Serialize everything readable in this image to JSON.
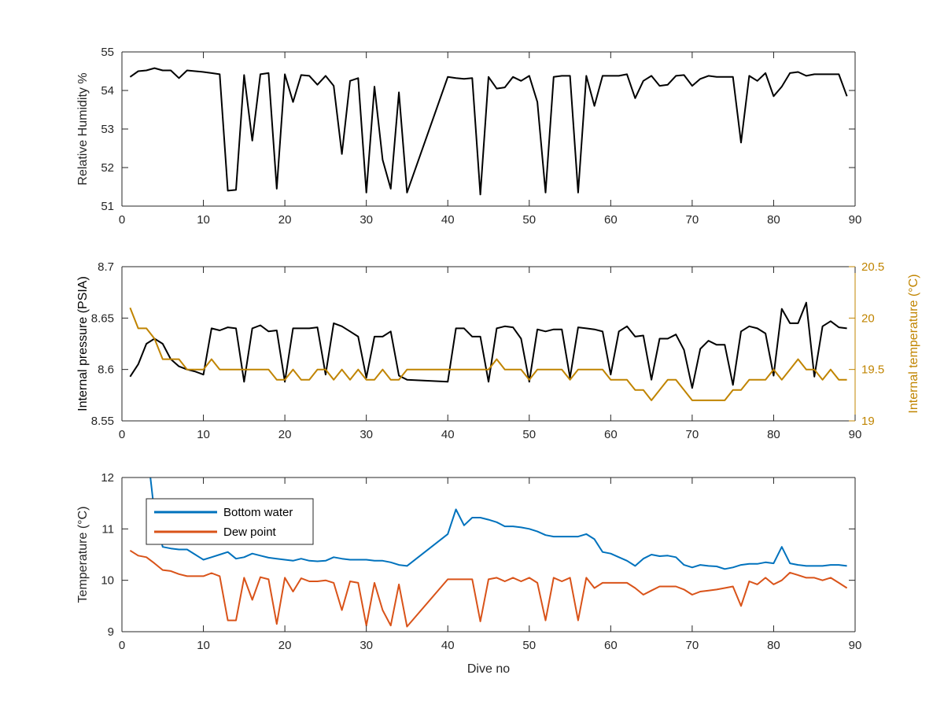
{
  "colors": {
    "black": "#000000",
    "axis": "#262626",
    "pressure_right": "#C08400",
    "bottom_water": "#0072BD",
    "dew_point": "#D95319"
  },
  "chart_data": [
    {
      "type": "line",
      "xlabel": "",
      "ylabel": "Relative Humidity %",
      "xlim": [
        0,
        90
      ],
      "ylim": [
        51,
        55
      ],
      "xticks": [
        "0",
        "10",
        "20",
        "30",
        "40",
        "50",
        "60",
        "70",
        "80",
        "90"
      ],
      "yticks": [
        "51",
        "52",
        "53",
        "54",
        "55"
      ],
      "grid": false,
      "series": [
        {
          "color": "#000000",
          "x": [
            1,
            2,
            3,
            4,
            5,
            6,
            7,
            8,
            9,
            10,
            11,
            12,
            13,
            14,
            15,
            16,
            17,
            18,
            19,
            20,
            21,
            22,
            23,
            24,
            25,
            26,
            27,
            28,
            29,
            30,
            31,
            32,
            33,
            34,
            35,
            40,
            41,
            42,
            43,
            44,
            45,
            46,
            47,
            48,
            49,
            50,
            51,
            52,
            53,
            54,
            55,
            56,
            57,
            58,
            59,
            60,
            61,
            62,
            63,
            64,
            65,
            66,
            67,
            68,
            69,
            70,
            71,
            72,
            73,
            74,
            75,
            76,
            77,
            78,
            79,
            80,
            81,
            82,
            83,
            84,
            85,
            86,
            87,
            88,
            89
          ],
          "y": [
            54.35,
            54.5,
            54.52,
            54.58,
            54.52,
            54.52,
            54.32,
            54.52,
            54.5,
            54.48,
            54.45,
            54.42,
            51.4,
            51.42,
            54.4,
            52.7,
            54.42,
            54.45,
            51.45,
            54.42,
            53.7,
            54.4,
            54.38,
            54.15,
            54.38,
            54.12,
            52.35,
            54.25,
            54.32,
            51.35,
            54.1,
            52.2,
            51.45,
            53.95,
            51.35,
            54.35,
            54.32,
            54.3,
            54.32,
            51.3,
            54.35,
            54.05,
            54.08,
            54.35,
            54.25,
            54.38,
            53.7,
            51.35,
            54.35,
            54.38,
            54.38,
            51.35,
            54.38,
            53.6,
            54.38,
            54.38,
            54.38,
            54.42,
            53.8,
            54.25,
            54.38,
            54.12,
            54.15,
            54.38,
            54.4,
            54.12,
            54.3,
            54.38,
            54.35,
            54.35,
            54.35,
            52.65,
            54.38,
            54.25,
            54.45,
            53.85,
            54.1,
            54.45,
            54.48,
            54.38,
            54.42,
            54.42,
            54.42,
            54.42,
            53.85
          ]
        }
      ]
    },
    {
      "type": "line",
      "xlabel": "",
      "ylabel": "Internal pressure (PSIA)",
      "ylabel_right": "Internal temperature (°C)",
      "xlim": [
        0,
        90
      ],
      "ylim": [
        8.55,
        8.7
      ],
      "ylim_right": [
        19,
        20.5
      ],
      "xticks": [
        "0",
        "10",
        "20",
        "30",
        "40",
        "50",
        "60",
        "70",
        "80",
        "90"
      ],
      "yticks": [
        "8.55",
        "8.6",
        "8.65",
        "8.7"
      ],
      "yticks_right": [
        "19",
        "19.5",
        "20",
        "20.5"
      ],
      "grid": false,
      "series": [
        {
          "axis": "left",
          "color": "#000000",
          "x": [
            1,
            2,
            3,
            4,
            5,
            6,
            7,
            8,
            9,
            10,
            11,
            12,
            13,
            14,
            15,
            16,
            17,
            18,
            19,
            20,
            21,
            22,
            23,
            24,
            25,
            26,
            27,
            28,
            29,
            30,
            31,
            32,
            33,
            34,
            35,
            40,
            41,
            42,
            43,
            44,
            45,
            46,
            47,
            48,
            49,
            50,
            51,
            52,
            53,
            54,
            55,
            56,
            57,
            58,
            59,
            60,
            61,
            62,
            63,
            64,
            65,
            66,
            67,
            68,
            69,
            70,
            71,
            72,
            73,
            74,
            75,
            76,
            77,
            78,
            79,
            80,
            81,
            82,
            83,
            84,
            85,
            86,
            87,
            88,
            89
          ],
          "y": [
            8.593,
            8.605,
            8.625,
            8.63,
            8.625,
            8.61,
            8.603,
            8.6,
            8.598,
            8.595,
            8.64,
            8.638,
            8.641,
            8.64,
            8.588,
            8.64,
            8.643,
            8.637,
            8.638,
            8.588,
            8.64,
            8.64,
            8.64,
            8.641,
            8.595,
            8.645,
            8.642,
            8.637,
            8.632,
            8.592,
            8.632,
            8.632,
            8.637,
            8.594,
            8.59,
            8.588,
            8.64,
            8.64,
            8.632,
            8.632,
            8.588,
            8.64,
            8.642,
            8.641,
            8.63,
            8.588,
            8.639,
            8.637,
            8.639,
            8.639,
            8.592,
            8.641,
            8.64,
            8.639,
            8.637,
            8.595,
            8.637,
            8.642,
            8.632,
            8.633,
            8.59,
            8.63,
            8.63,
            8.634,
            8.619,
            8.582,
            8.62,
            8.628,
            8.624,
            8.624,
            8.585,
            8.637,
            8.642,
            8.64,
            8.635,
            8.594,
            8.659,
            8.645,
            8.645,
            8.665,
            8.593,
            8.642,
            8.647,
            8.641,
            8.64
          ]
        },
        {
          "axis": "right",
          "color": "#C08400",
          "x": [
            1,
            2,
            3,
            4,
            5,
            6,
            7,
            8,
            9,
            10,
            11,
            12,
            13,
            14,
            15,
            16,
            17,
            18,
            19,
            20,
            21,
            22,
            23,
            24,
            25,
            26,
            27,
            28,
            29,
            30,
            31,
            32,
            33,
            34,
            35,
            40,
            41,
            42,
            43,
            44,
            45,
            46,
            47,
            48,
            49,
            50,
            51,
            52,
            53,
            54,
            55,
            56,
            57,
            58,
            59,
            60,
            61,
            62,
            63,
            64,
            65,
            66,
            67,
            68,
            69,
            70,
            71,
            72,
            73,
            74,
            75,
            76,
            77,
            78,
            79,
            80,
            81,
            82,
            83,
            84,
            85,
            86,
            87,
            88,
            89
          ],
          "y": [
            20.1,
            19.9,
            19.9,
            19.8,
            19.6,
            19.6,
            19.6,
            19.5,
            19.5,
            19.5,
            19.6,
            19.5,
            19.5,
            19.5,
            19.5,
            19.5,
            19.5,
            19.5,
            19.4,
            19.4,
            19.5,
            19.4,
            19.4,
            19.5,
            19.5,
            19.4,
            19.5,
            19.4,
            19.5,
            19.4,
            19.4,
            19.5,
            19.4,
            19.4,
            19.5,
            19.5,
            19.5,
            19.5,
            19.5,
            19.5,
            19.5,
            19.6,
            19.5,
            19.5,
            19.5,
            19.4,
            19.5,
            19.5,
            19.5,
            19.5,
            19.4,
            19.5,
            19.5,
            19.5,
            19.5,
            19.4,
            19.4,
            19.4,
            19.3,
            19.3,
            19.2,
            19.3,
            19.4,
            19.4,
            19.3,
            19.2,
            19.2,
            19.2,
            19.2,
            19.2,
            19.3,
            19.3,
            19.4,
            19.4,
            19.4,
            19.5,
            19.4,
            19.5,
            19.6,
            19.5,
            19.5,
            19.4,
            19.5,
            19.4,
            19.4
          ]
        }
      ]
    },
    {
      "type": "line",
      "xlabel": "Dive no",
      "ylabel": "Temperature (°C)",
      "xlim": [
        0,
        90
      ],
      "ylim": [
        9,
        12
      ],
      "xticks": [
        "0",
        "10",
        "20",
        "30",
        "40",
        "50",
        "60",
        "70",
        "80",
        "90"
      ],
      "yticks": [
        "9",
        "10",
        "11",
        "12"
      ],
      "grid": false,
      "legend_position": "top-left",
      "series": [
        {
          "name": "Bottom water",
          "color": "#0072BD",
          "x": [
            3.5,
            4,
            5,
            6,
            7,
            8,
            9,
            10,
            11,
            12,
            13,
            14,
            15,
            16,
            17,
            18,
            19,
            20,
            21,
            22,
            23,
            24,
            25,
            26,
            27,
            28,
            29,
            30,
            31,
            32,
            33,
            34,
            35,
            40,
            41,
            42,
            43,
            44,
            45,
            46,
            47,
            48,
            49,
            50,
            51,
            52,
            53,
            54,
            55,
            56,
            57,
            58,
            59,
            60,
            61,
            62,
            63,
            64,
            65,
            66,
            67,
            68,
            69,
            70,
            71,
            72,
            73,
            74,
            75,
            76,
            77,
            78,
            79,
            80,
            81,
            82,
            83,
            84,
            85,
            86,
            87,
            88,
            89
          ],
          "y": [
            12.0,
            11.3,
            10.65,
            10.62,
            10.6,
            10.6,
            10.5,
            10.4,
            10.45,
            10.5,
            10.55,
            10.42,
            10.45,
            10.52,
            10.48,
            10.44,
            10.42,
            10.4,
            10.38,
            10.42,
            10.38,
            10.37,
            10.38,
            10.45,
            10.42,
            10.4,
            10.4,
            10.4,
            10.38,
            10.38,
            10.35,
            10.3,
            10.28,
            10.9,
            11.38,
            11.07,
            11.22,
            11.22,
            11.18,
            11.13,
            11.05,
            11.05,
            11.03,
            11.0,
            10.95,
            10.88,
            10.85,
            10.85,
            10.85,
            10.85,
            10.9,
            10.8,
            10.55,
            10.52,
            10.45,
            10.38,
            10.28,
            10.42,
            10.5,
            10.47,
            10.48,
            10.45,
            10.3,
            10.25,
            10.3,
            10.28,
            10.27,
            10.22,
            10.25,
            10.3,
            10.32,
            10.32,
            10.35,
            10.33,
            10.65,
            10.33,
            10.3,
            10.28,
            10.28,
            10.28,
            10.3,
            10.3,
            10.28
          ]
        },
        {
          "name": "Dew point",
          "color": "#D95319",
          "x": [
            1,
            2,
            3,
            4,
            5,
            6,
            7,
            8,
            9,
            10,
            11,
            12,
            13,
            14,
            15,
            16,
            17,
            18,
            19,
            20,
            21,
            22,
            23,
            24,
            25,
            26,
            27,
            28,
            29,
            30,
            31,
            32,
            33,
            34,
            35,
            40,
            41,
            42,
            43,
            44,
            45,
            46,
            47,
            48,
            49,
            50,
            51,
            52,
            53,
            54,
            55,
            56,
            57,
            58,
            59,
            60,
            61,
            62,
            63,
            64,
            65,
            66,
            67,
            68,
            69,
            70,
            71,
            72,
            73,
            74,
            75,
            76,
            77,
            78,
            79,
            80,
            81,
            82,
            83,
            84,
            85,
            86,
            87,
            88,
            89
          ],
          "y": [
            10.58,
            10.48,
            10.45,
            10.33,
            10.2,
            10.18,
            10.12,
            10.08,
            10.08,
            10.08,
            10.14,
            10.08,
            9.22,
            9.22,
            10.05,
            9.62,
            10.06,
            10.02,
            9.15,
            10.05,
            9.78,
            10.04,
            9.98,
            9.98,
            10.0,
            9.95,
            9.42,
            9.98,
            9.95,
            9.12,
            9.95,
            9.42,
            9.12,
            9.92,
            9.1,
            10.02,
            10.02,
            10.02,
            10.02,
            9.2,
            10.02,
            10.05,
            9.98,
            10.05,
            9.98,
            10.05,
            9.95,
            9.22,
            10.05,
            9.98,
            10.05,
            9.22,
            10.05,
            9.85,
            9.95,
            9.95,
            9.95,
            9.95,
            9.85,
            9.72,
            9.8,
            9.88,
            9.88,
            9.88,
            9.82,
            9.72,
            9.78,
            9.8,
            9.82,
            9.85,
            9.88,
            9.5,
            9.98,
            9.92,
            10.05,
            9.92,
            10.0,
            10.15,
            10.1,
            10.05,
            10.05,
            10.0,
            10.05,
            9.95,
            9.85
          ]
        }
      ]
    }
  ]
}
